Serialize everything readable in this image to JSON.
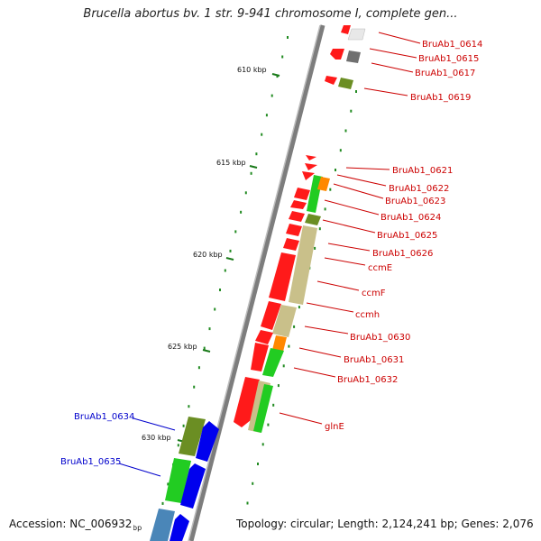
{
  "title": "Brucella abortus bv. 1 str. 9-941 chromosome I, complete gen...",
  "accession": "Accession: NC_006932",
  "topology": "Topology: circular; Length: 2,124,241 bp; Genes: 2,076",
  "colors": {
    "forward_label": "#0000cc",
    "reverse_label": "#cc0000",
    "backbone": "#888888",
    "gc_dot": "#228b22"
  },
  "scale_ticks": [
    "610 kbp",
    "615 kbp",
    "620 kbp",
    "625 kbp",
    "630 kbp",
    "bp"
  ],
  "right_labels": [
    "BruAb1_0614",
    "BruAb1_0615",
    "BruAb1_0617",
    "BruAb1_0619",
    "BruAb1_0621",
    "BruAb1_0622",
    "BruAb1_0623",
    "BruAb1_0624",
    "BruAb1_0625",
    "BruAb1_0626",
    "ccmE",
    "ccmF",
    "ccmh",
    "BruAb1_0630",
    "BruAb1_0631",
    "BruAb1_0632",
    "glnE"
  ],
  "left_labels": [
    "BruAb1_0634",
    "BruAb1_0635"
  ]
}
